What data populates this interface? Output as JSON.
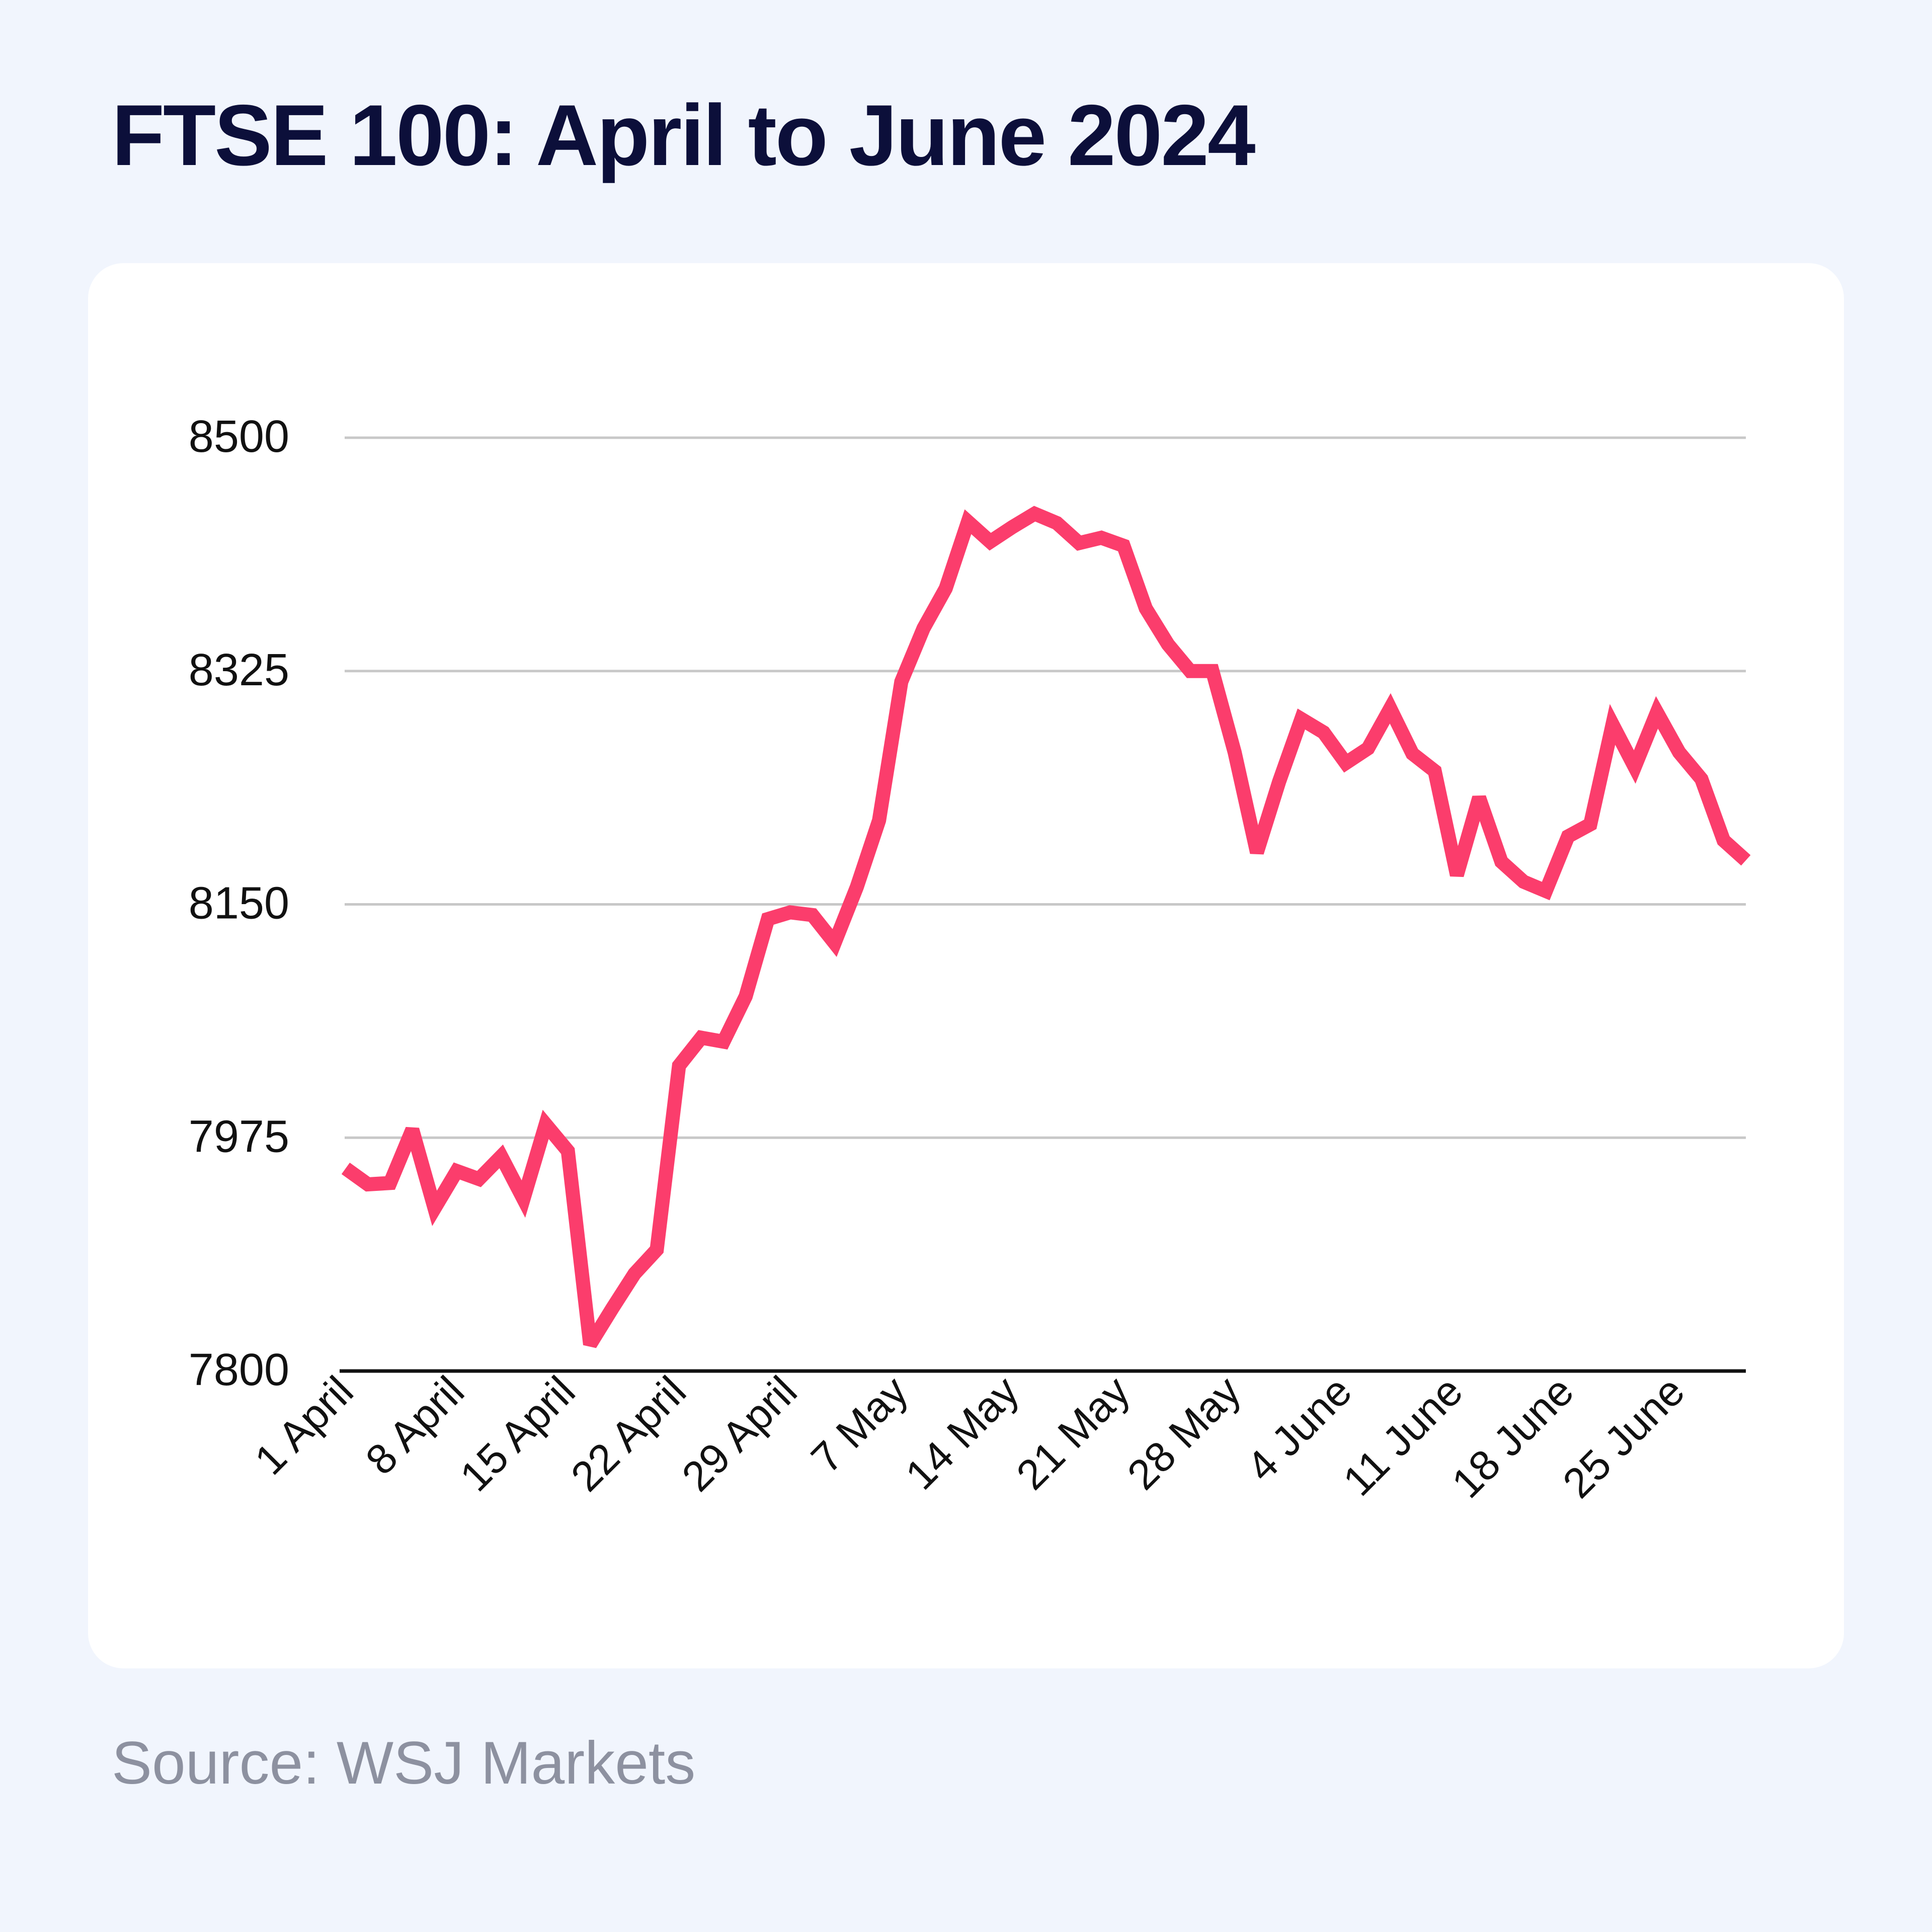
{
  "header": {
    "title": "FTSE 100: April to June 2024"
  },
  "footer": {
    "source": "Source: WSJ Markets"
  },
  "colors": {
    "background": "#f1f5fd",
    "card": "#ffffff",
    "line": "#fb3d6c",
    "gridline": "#c8c8c8",
    "axis": "#111111",
    "title": "#0c0f3a",
    "source": "#8d91a0"
  },
  "chart_data": {
    "type": "line",
    "title": "FTSE 100: April to June 2024",
    "xlabel": "",
    "ylabel": "",
    "ylim": [
      7800,
      8500
    ],
    "yticks": [
      7800,
      7975,
      8150,
      8325,
      8500
    ],
    "ytick_labels": [
      "7800",
      "7975",
      "8150",
      "8325",
      "8500"
    ],
    "xtick_labels": [
      "1 April",
      "8 April",
      "15 April",
      "22 April",
      "29 April",
      "7 May",
      "14 May",
      "21 May",
      "28 May",
      "4 June",
      "11 June",
      "18 June",
      "25 June"
    ],
    "grid": true,
    "legend": "none",
    "series": [
      {
        "values": [
          7952,
          7940,
          7941,
          7981,
          7922,
          7950,
          7944,
          7961,
          7929,
          7985,
          7965,
          7820,
          7847,
          7873,
          7891,
          8029,
          8050,
          8047,
          8081,
          8139,
          8144,
          8142,
          8121,
          8163,
          8213,
          8317,
          8357,
          8387,
          8437,
          8422,
          8433,
          8443,
          8436,
          8421,
          8425,
          8419,
          8372,
          8345,
          8325,
          8325,
          8264,
          8189,
          8242,
          8289,
          8279,
          8256,
          8267,
          8297,
          8263,
          8250,
          8172,
          8230,
          8182,
          8167,
          8160,
          8201,
          8210,
          8285,
          8253,
          8294,
          8264,
          8244,
          8198,
          8183
        ]
      }
    ]
  }
}
